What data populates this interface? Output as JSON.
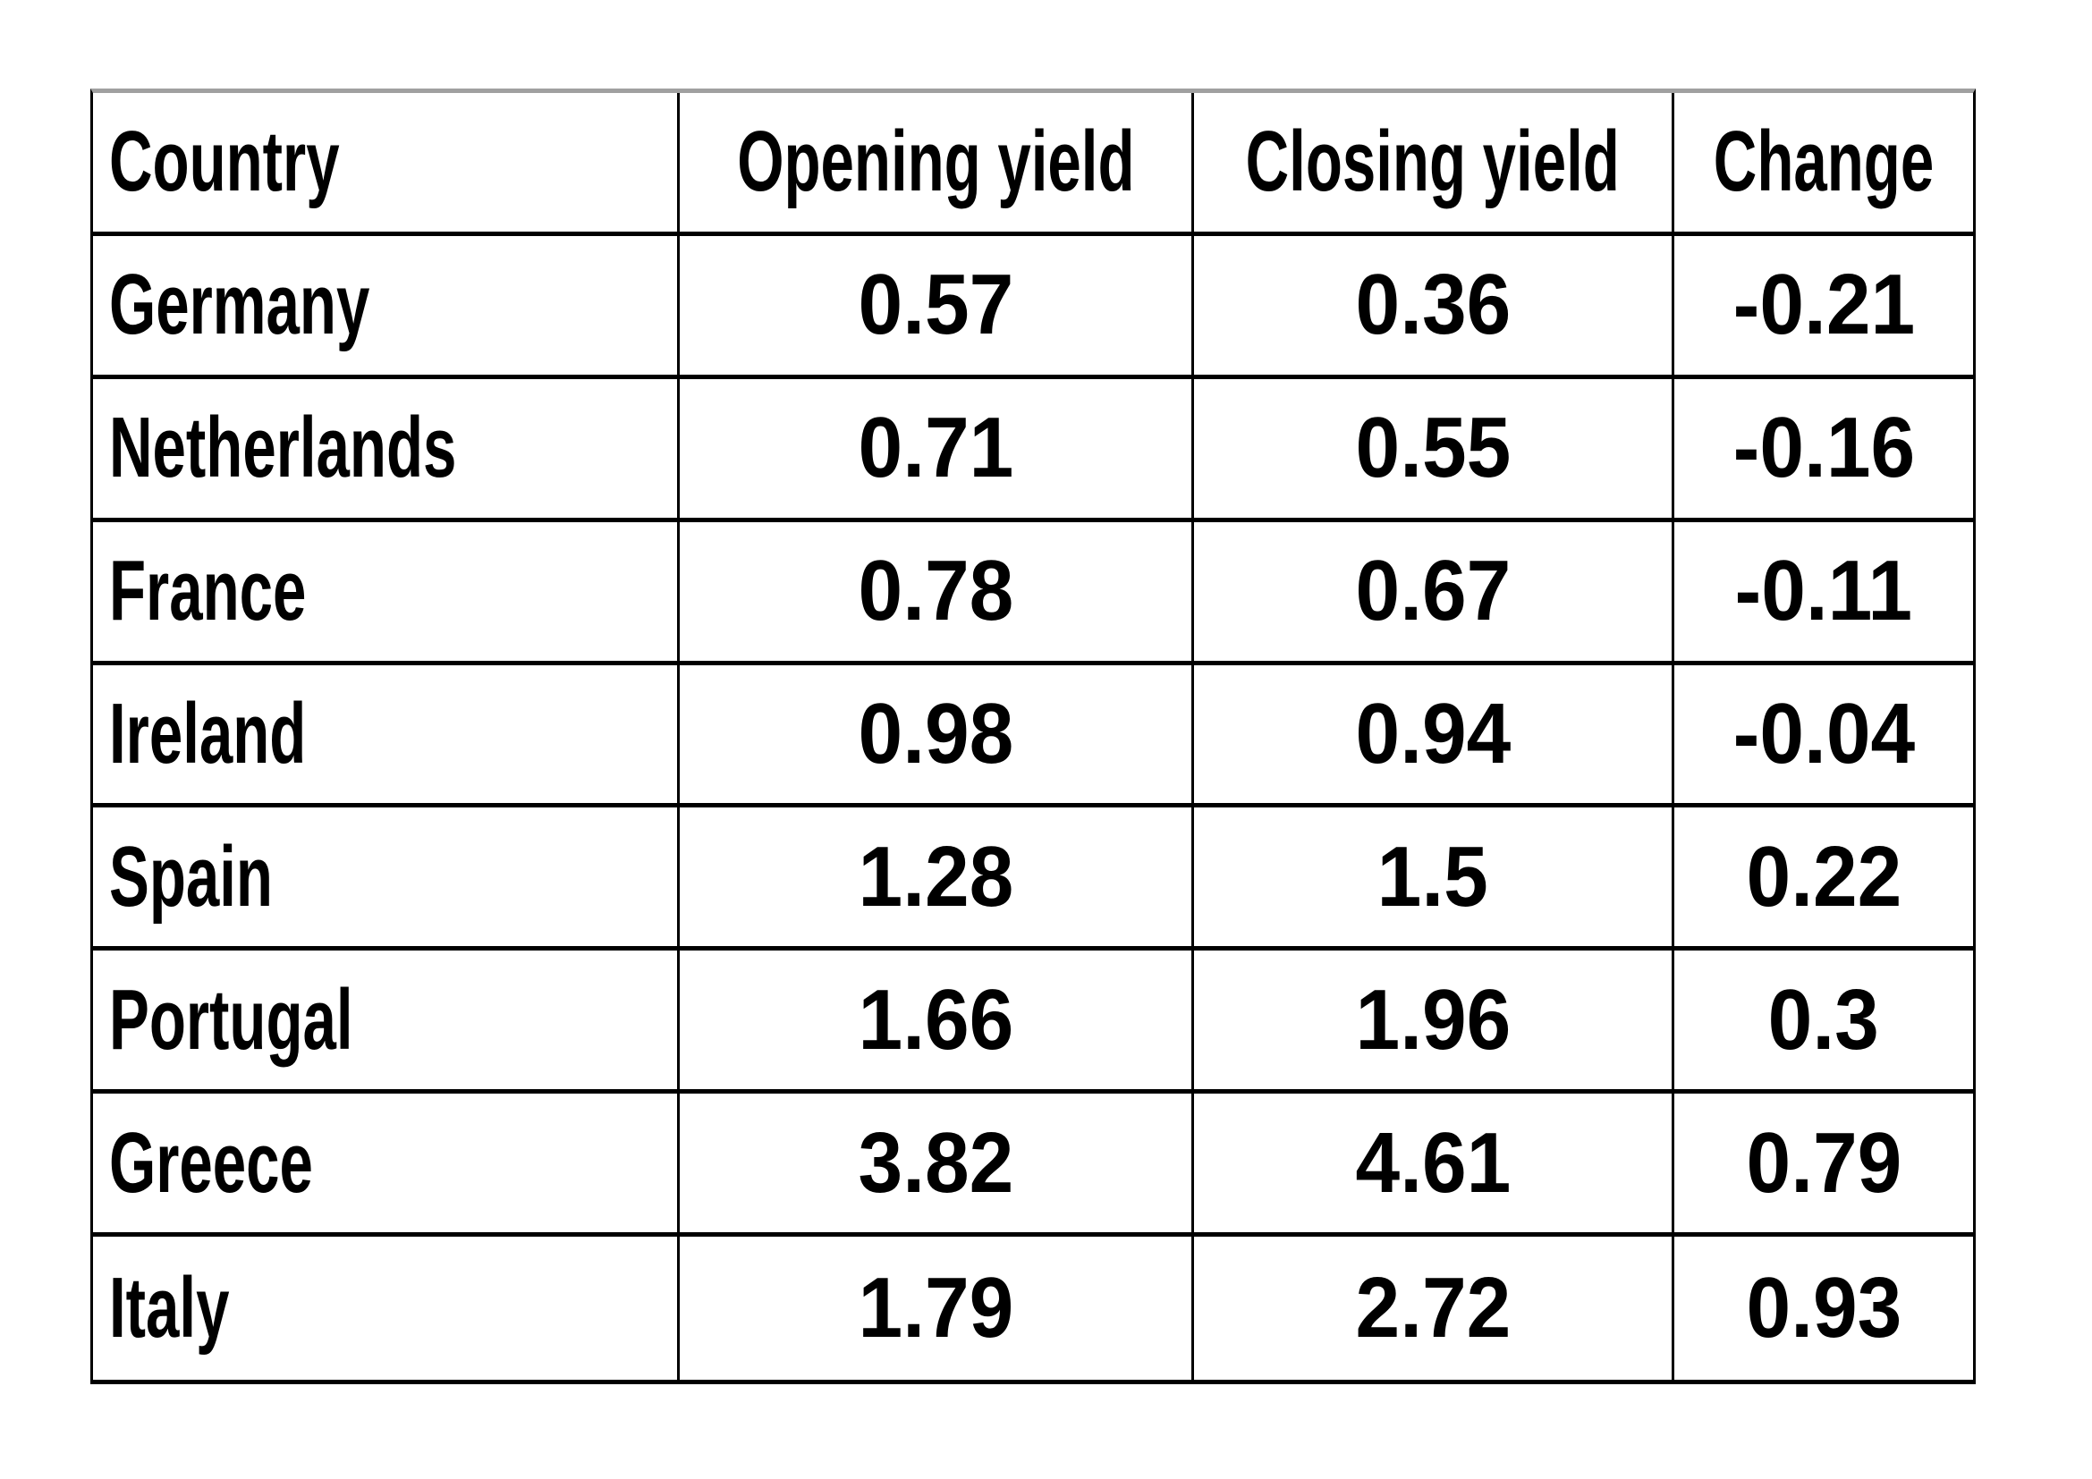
{
  "table": {
    "columns": [
      "Country",
      "Opening yield",
      "Closing yield",
      "Change"
    ],
    "rows": [
      {
        "country": "Germany",
        "opening": "0.57",
        "closing": "0.36",
        "change": "-0.21"
      },
      {
        "country": "Netherlands",
        "opening": "0.71",
        "closing": "0.55",
        "change": "-0.16"
      },
      {
        "country": "France",
        "opening": "0.78",
        "closing": "0.67",
        "change": "-0.11"
      },
      {
        "country": "Ireland",
        "opening": "0.98",
        "closing": "0.94",
        "change": "-0.04"
      },
      {
        "country": "Spain",
        "opening": "1.28",
        "closing": "1.5",
        "change": "0.22"
      },
      {
        "country": "Portugal",
        "opening": "1.66",
        "closing": "1.96",
        "change": "0.3"
      },
      {
        "country": "Greece",
        "opening": "3.82",
        "closing": "4.61",
        "change": "0.79"
      },
      {
        "country": "Italy",
        "opening": "1.79",
        "closing": "2.72",
        "change": "0.93"
      }
    ]
  },
  "chart_data": {
    "type": "table",
    "title": "",
    "columns": [
      "Country",
      "Opening yield",
      "Closing yield",
      "Change"
    ],
    "categories": [
      "Germany",
      "Netherlands",
      "France",
      "Ireland",
      "Spain",
      "Portugal",
      "Greece",
      "Italy"
    ],
    "series": [
      {
        "name": "Opening yield",
        "values": [
          0.57,
          0.71,
          0.78,
          0.98,
          1.28,
          1.66,
          3.82,
          1.79
        ]
      },
      {
        "name": "Closing yield",
        "values": [
          0.36,
          0.55,
          0.67,
          0.94,
          1.5,
          1.96,
          4.61,
          2.72
        ]
      },
      {
        "name": "Change",
        "values": [
          -0.21,
          -0.16,
          -0.11,
          -0.04,
          0.22,
          0.3,
          0.79,
          0.93
        ]
      }
    ]
  },
  "colors": {
    "background": "#ffffff",
    "grid_border": "#000000",
    "top_border": "#a0a0a0",
    "text": "#000000"
  }
}
